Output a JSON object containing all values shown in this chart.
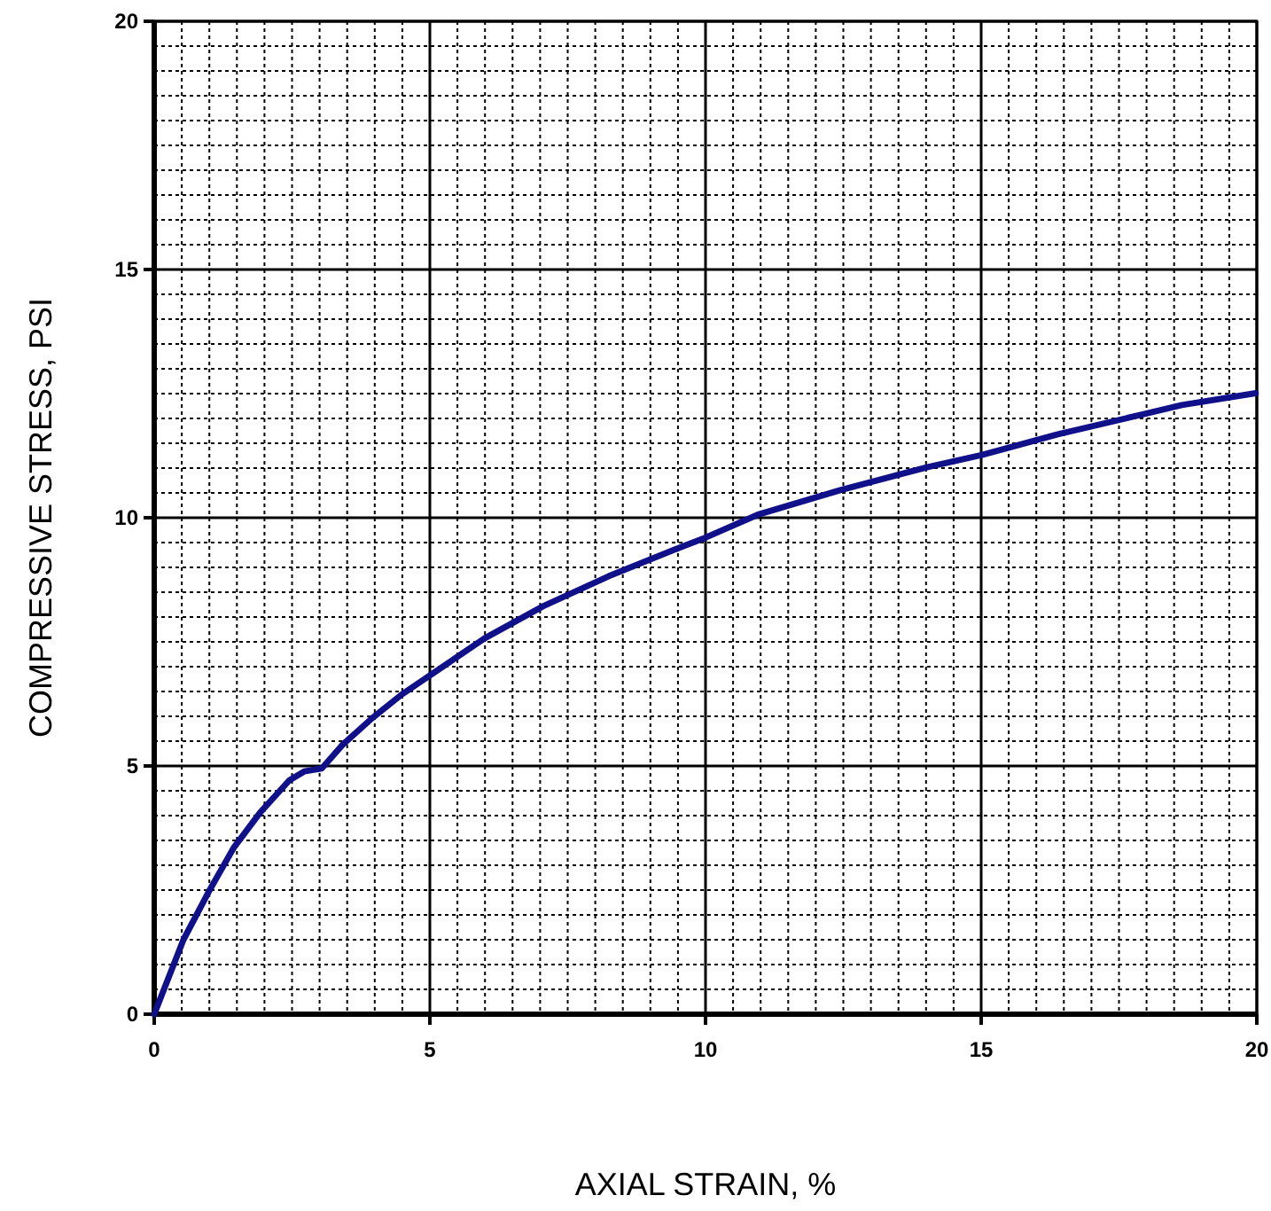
{
  "chart_data": {
    "type": "line",
    "xlabel": "AXIAL STRAIN, %",
    "ylabel": "COMPRESSIVE STRESS, PSI",
    "xlim": [
      0,
      20
    ],
    "ylim": [
      0,
      20
    ],
    "xticks": [
      0,
      5,
      10,
      15,
      20
    ],
    "yticks": [
      0,
      5,
      10,
      15,
      20
    ],
    "grid": true,
    "marker": "none",
    "line_style": "solid",
    "series": [
      {
        "color": "#10108a",
        "x": [
          0,
          0.53,
          1.01,
          1.44,
          1.92,
          2.45,
          2.72,
          3.04,
          3.42,
          3.95,
          4.49,
          4.97,
          5.99,
          7.06,
          8.24,
          9.58,
          10.0,
          10.97,
          12.43,
          14.03,
          15.0,
          16.39,
          18.0,
          18.64,
          19.98
        ],
        "values": [
          0,
          1.5,
          2.51,
          3.35,
          4.06,
          4.71,
          4.89,
          4.95,
          5.43,
          5.96,
          6.44,
          6.8,
          7.57,
          8.22,
          8.82,
          9.42,
          9.6,
          10.07,
          10.55,
          11.02,
          11.26,
          11.68,
          12.1,
          12.27,
          12.51
        ]
      }
    ]
  }
}
